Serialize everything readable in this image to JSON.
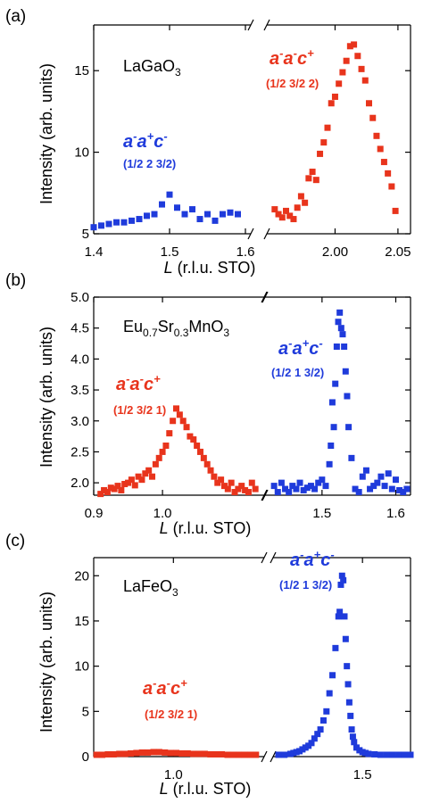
{
  "chart_data": [
    {
      "type": "scatter",
      "panel_label": "(a)",
      "material": {
        "base": "LaGaO",
        "sub": "3"
      },
      "ylabel": "Intensity (arb. units)",
      "xlabel_italic": "L",
      "xlabel_rest": " (r.l.u. STO)",
      "segments": [
        {
          "xlim": [
            1.4,
            1.6
          ],
          "xticks": [
            "1.4",
            "1.5",
            "1.6"
          ],
          "tick_values": [
            1.4,
            1.5,
            1.6
          ]
        },
        {
          "xlim": [
            1.95,
            2.06
          ],
          "xticks": [
            "2.00",
            "2.05"
          ],
          "tick_values": [
            2.0,
            2.05
          ]
        }
      ],
      "ylim": [
        5,
        17.8
      ],
      "yticks": [
        5,
        10,
        15
      ],
      "annotations": [
        {
          "glazer": [
            "a",
            "-",
            "a",
            "+",
            "c",
            "-"
          ],
          "index": "(1/2 2 3/2)",
          "color": "#1f3bdb"
        },
        {
          "glazer": [
            "a",
            "-",
            "a",
            "-",
            "c",
            "+"
          ],
          "index": "(1/2 3/2 2)",
          "color": "#e8341c"
        }
      ],
      "series": [
        {
          "color": "#1f3bdb",
          "segment": 0,
          "x": [
            1.4,
            1.41,
            1.42,
            1.43,
            1.44,
            1.45,
            1.46,
            1.47,
            1.48,
            1.49,
            1.5,
            1.51,
            1.52,
            1.53,
            1.54,
            1.55,
            1.56,
            1.57,
            1.58,
            1.59
          ],
          "y": [
            5.4,
            5.5,
            5.6,
            5.7,
            5.7,
            5.8,
            5.9,
            6.1,
            6.2,
            6.8,
            7.4,
            6.6,
            6.2,
            6.5,
            5.9,
            6.2,
            5.8,
            6.2,
            6.3,
            6.2
          ]
        },
        {
          "color": "#e8341c",
          "segment": 1,
          "x": [
            1.952,
            1.955,
            1.958,
            1.961,
            1.964,
            1.967,
            1.97,
            1.973,
            1.976,
            1.979,
            1.982,
            1.985,
            1.988,
            1.991,
            1.994,
            1.997,
            2.0,
            2.003,
            2.006,
            2.009,
            2.012,
            2.015,
            2.018,
            2.021,
            2.024,
            2.027,
            2.03,
            2.033,
            2.036,
            2.039,
            2.042,
            2.045,
            2.048
          ],
          "y": [
            6.5,
            6.2,
            6.0,
            6.4,
            6.1,
            5.9,
            6.6,
            7.3,
            6.9,
            8.4,
            8.8,
            8.3,
            9.9,
            10.6,
            11.5,
            13.0,
            13.4,
            14.2,
            14.9,
            15.6,
            16.5,
            16.6,
            15.9,
            15.1,
            14.4,
            13.0,
            12.1,
            11.0,
            10.2,
            9.4,
            8.7,
            7.9,
            6.4
          ]
        }
      ]
    },
    {
      "type": "scatter",
      "panel_label": "(b)",
      "material": {
        "parts": [
          [
            "Eu",
            "0.7"
          ],
          [
            "Sr",
            "0.3"
          ],
          [
            "MnO",
            "3"
          ]
        ]
      },
      "ylabel": "Intensity (arb. units)",
      "xlabel_italic": "L",
      "xlabel_rest": " (r.l.u. STO)",
      "segments": [
        {
          "xlim": [
            0.9,
            1.14
          ],
          "xticks": [
            "0.9",
            "1.0"
          ],
          "tick_values": [
            0.9,
            1.0
          ]
        },
        {
          "xlim": [
            1.43,
            1.62
          ],
          "xticks": [
            "1.5",
            "1.6"
          ],
          "tick_values": [
            1.5,
            1.6
          ]
        }
      ],
      "ylim": [
        1.8,
        5.0
      ],
      "yticks": [
        "2.0",
        "2.5",
        "3.0",
        "3.5",
        "4.0",
        "4.5",
        "5.0"
      ],
      "ytick_values": [
        2.0,
        2.5,
        3.0,
        3.5,
        4.0,
        4.5,
        5.0
      ],
      "annotations": [
        {
          "glazer": [
            "a",
            "-",
            "a",
            "-",
            "c",
            "+"
          ],
          "index": "(1/2 3/2 1)",
          "color": "#e8341c"
        },
        {
          "glazer": [
            "a",
            "-",
            "a",
            "+",
            "c",
            "-"
          ],
          "index": "(1/2 1 3/2)",
          "color": "#1f3bdb"
        }
      ],
      "series": [
        {
          "color": "#e8341c",
          "segment": 0,
          "x": [
            0.91,
            0.915,
            0.92,
            0.925,
            0.93,
            0.935,
            0.94,
            0.945,
            0.95,
            0.955,
            0.96,
            0.965,
            0.97,
            0.975,
            0.98,
            0.985,
            0.99,
            0.995,
            1.0,
            1.005,
            1.01,
            1.015,
            1.02,
            1.025,
            1.03,
            1.035,
            1.04,
            1.045,
            1.05,
            1.055,
            1.06,
            1.065,
            1.07,
            1.075,
            1.08,
            1.085,
            1.09,
            1.095,
            1.1,
            1.105,
            1.11,
            1.115,
            1.12,
            1.125,
            1.13,
            1.135
          ],
          "y": [
            1.82,
            1.88,
            1.85,
            1.92,
            1.9,
            1.95,
            1.88,
            1.98,
            2.0,
            2.05,
            1.96,
            2.1,
            2.05,
            2.15,
            2.2,
            2.1,
            2.3,
            2.4,
            2.5,
            2.6,
            2.8,
            3.0,
            3.2,
            3.1,
            3.0,
            2.9,
            2.75,
            2.7,
            2.6,
            2.5,
            2.4,
            2.3,
            2.2,
            2.1,
            2.0,
            2.05,
            1.95,
            1.9,
            2.0,
            1.85,
            1.9,
            1.95,
            1.88,
            1.85,
            2.0,
            1.9
          ]
        },
        {
          "color": "#1f3bdb",
          "segment": 1,
          "x": [
            1.435,
            1.44,
            1.445,
            1.45,
            1.455,
            1.46,
            1.465,
            1.47,
            1.475,
            1.48,
            1.485,
            1.49,
            1.495,
            1.5,
            1.505,
            1.51,
            1.512,
            1.514,
            1.516,
            1.518,
            1.52,
            1.522,
            1.524,
            1.526,
            1.528,
            1.53,
            1.532,
            1.534,
            1.536,
            1.54,
            1.545,
            1.55,
            1.555,
            1.56,
            1.565,
            1.57,
            1.575,
            1.58,
            1.585,
            1.59,
            1.595,
            1.6,
            1.605,
            1.61,
            1.615
          ],
          "y": [
            1.95,
            1.85,
            2.0,
            1.9,
            1.85,
            1.95,
            1.9,
            2.0,
            1.88,
            1.92,
            1.95,
            1.9,
            2.0,
            2.05,
            1.95,
            2.3,
            2.6,
            3.3,
            2.9,
            3.6,
            4.2,
            4.6,
            4.75,
            4.5,
            4.4,
            4.2,
            3.8,
            3.4,
            2.9,
            2.4,
            1.9,
            1.85,
            2.1,
            2.2,
            1.9,
            1.95,
            2.0,
            2.1,
            1.95,
            2.15,
            1.9,
            2.05,
            1.88,
            1.85,
            1.9
          ]
        }
      ]
    },
    {
      "type": "scatter",
      "panel_label": "(c)",
      "material": {
        "base": "LaFeO",
        "sub": "3"
      },
      "ylabel": "Intensity (arb. units)",
      "xlabel_italic": "L",
      "xlabel_rest": " (r.l.u. STO)",
      "segments": [
        {
          "xlim": [
            0.86,
            1.15
          ],
          "xticks": [
            "1.0"
          ],
          "tick_values": [
            1.0
          ]
        },
        {
          "xlim": [
            1.36,
            1.58
          ],
          "xticks": [
            "1.5"
          ],
          "tick_values": [
            1.5
          ]
        }
      ],
      "ylim": [
        0,
        22
      ],
      "yticks": [
        0,
        5,
        10,
        15,
        20
      ],
      "annotations": [
        {
          "glazer": [
            "a",
            "-",
            "a",
            "-",
            "c",
            "+"
          ],
          "index": "(1/2 3/2 1)",
          "color": "#e8341c"
        },
        {
          "glazer": [
            "a",
            "-",
            "a",
            "+",
            "c",
            "-"
          ],
          "index": "(1/2 1 3/2)",
          "color": "#1f3bdb"
        }
      ],
      "series": [
        {
          "color": "#e8341c",
          "segment": 0,
          "x": [
            0.865,
            0.875,
            0.885,
            0.895,
            0.905,
            0.915,
            0.925,
            0.935,
            0.945,
            0.955,
            0.965,
            0.975,
            0.985,
            0.995,
            1.005,
            1.015,
            1.025,
            1.035,
            1.045,
            1.055,
            1.065,
            1.075,
            1.085,
            1.095,
            1.105,
            1.115,
            1.125,
            1.135,
            1.145
          ],
          "y": [
            0.2,
            0.2,
            0.25,
            0.25,
            0.3,
            0.3,
            0.35,
            0.4,
            0.45,
            0.45,
            0.5,
            0.5,
            0.45,
            0.4,
            0.4,
            0.35,
            0.35,
            0.3,
            0.3,
            0.3,
            0.25,
            0.25,
            0.25,
            0.2,
            0.2,
            0.2,
            0.2,
            0.2,
            0.2
          ]
        },
        {
          "color": "#1f3bdb",
          "segment": 1,
          "x": [
            1.36,
            1.37,
            1.38,
            1.385,
            1.39,
            1.395,
            1.4,
            1.405,
            1.41,
            1.415,
            1.42,
            1.425,
            1.43,
            1.435,
            1.44,
            1.445,
            1.45,
            1.455,
            1.46,
            1.462,
            1.464,
            1.466,
            1.468,
            1.47,
            1.472,
            1.474,
            1.476,
            1.478,
            1.48,
            1.482,
            1.484,
            1.486,
            1.49,
            1.495,
            1.5,
            1.505,
            1.51,
            1.52,
            1.53,
            1.54,
            1.55,
            1.56,
            1.57,
            1.58
          ],
          "y": [
            0.2,
            0.2,
            0.3,
            0.4,
            0.5,
            0.6,
            0.8,
            1.0,
            1.2,
            1.5,
            2.0,
            2.5,
            3.0,
            4.0,
            5.0,
            7.0,
            9.0,
            12.0,
            15.5,
            16.0,
            19.0,
            20.0,
            19.5,
            15.5,
            13.0,
            10.0,
            8.0,
            6.0,
            4.5,
            3.0,
            2.2,
            1.6,
            1.0,
            0.7,
            0.5,
            0.4,
            0.3,
            0.25,
            0.2,
            0.2,
            0.2,
            0.2,
            0.2,
            0.2
          ]
        }
      ]
    }
  ]
}
